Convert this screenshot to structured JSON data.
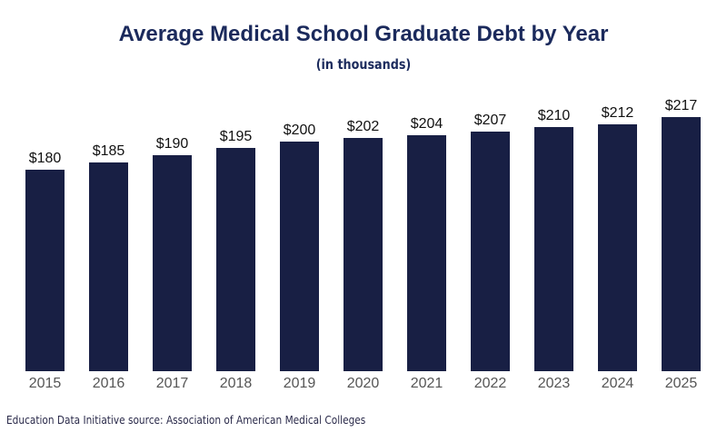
{
  "chart_data": {
    "type": "bar",
    "title": "Average Medical School Graduate Debt by Year",
    "subtitle": "(in thousands)",
    "xlabel": "",
    "ylabel": "",
    "categories": [
      "2015",
      "2016",
      "2017",
      "2018",
      "2019",
      "2020",
      "2021",
      "2022",
      "2023",
      "2024",
      "2025"
    ],
    "values": [
      180,
      185,
      190,
      195,
      200,
      202,
      204,
      207,
      210,
      212,
      217
    ],
    "value_labels": [
      "$180",
      "$185",
      "$190",
      "$195",
      "$200",
      "$202",
      "$204",
      "$207",
      "$210",
      "$212",
      "$217"
    ],
    "grid": false,
    "legend": "none",
    "bar_color": "#181f44"
  },
  "footer": {
    "source": "Education Data Initiative source: Association of American Medical Colleges"
  }
}
